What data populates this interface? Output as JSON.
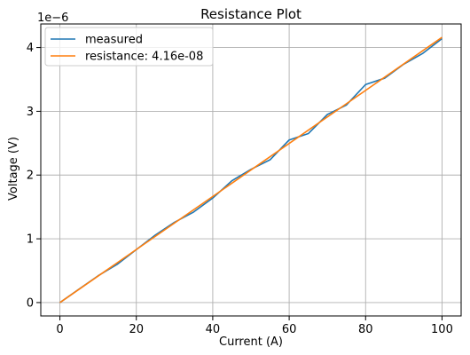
{
  "chart_data": {
    "type": "line",
    "title": "Resistance Plot",
    "xlabel": "Current (A)",
    "ylabel": "Voltage (V)",
    "offset_text": "1e−6",
    "x_ticks": [
      0,
      20,
      40,
      60,
      80,
      100
    ],
    "x_tick_labels": [
      "0",
      "20",
      "40",
      "60",
      "80",
      "100"
    ],
    "y_ticks": [
      0,
      1,
      2,
      3,
      4
    ],
    "y_tick_labels": [
      "0",
      "1",
      "2",
      "3",
      "4"
    ],
    "xlim": [
      -5,
      105
    ],
    "ylim": [
      -0.21,
      4.37
    ],
    "y_scale": "1e-6",
    "grid": true,
    "legend_position": "top-left",
    "series": [
      {
        "name": "measured",
        "color": "#1f77b4",
        "x": [
          0,
          5,
          10,
          15,
          20,
          25,
          30,
          35,
          40,
          45,
          50,
          55,
          60,
          65,
          70,
          75,
          80,
          85,
          90,
          95,
          100
        ],
        "y": [
          0,
          0.21,
          0.42,
          0.6,
          0.83,
          1.06,
          1.26,
          1.42,
          1.64,
          1.91,
          2.09,
          2.24,
          2.55,
          2.65,
          2.95,
          3.1,
          3.42,
          3.52,
          3.74,
          3.91,
          4.14
        ]
      },
      {
        "name": "resistance: 4.16e-08",
        "color": "#ff7f0e",
        "x": [
          0,
          100
        ],
        "y": [
          0,
          4.16
        ]
      }
    ]
  }
}
